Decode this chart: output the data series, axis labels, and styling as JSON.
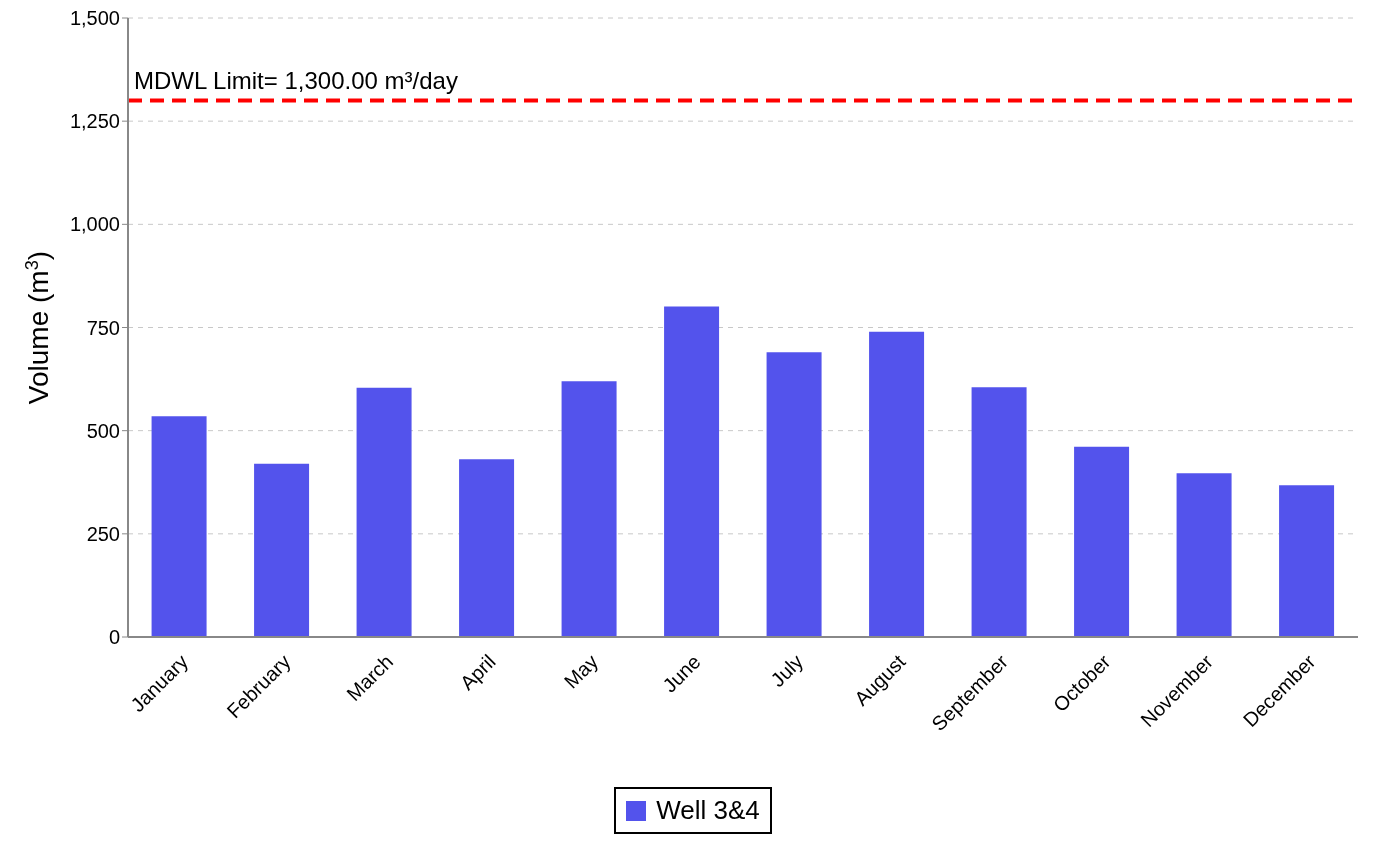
{
  "chart_data": {
    "type": "bar",
    "ylabel": "Volume (m$^{3}$)",
    "categories": [
      "January",
      "February",
      "March",
      "April",
      "May",
      "June",
      "July",
      "August",
      "September",
      "October",
      "November",
      "December"
    ],
    "series": [
      {
        "name": "Well 3&4",
        "color": "#5353ec",
        "values": [
          535,
          420,
          604,
          431,
          620,
          801,
          690,
          740,
          605,
          461,
          397,
          368
        ]
      }
    ],
    "ylim": [
      0,
      1500
    ],
    "yticks": [
      {
        "value": 0,
        "label": "0"
      },
      {
        "value": 250,
        "label": "250"
      },
      {
        "value": 500,
        "label": "500"
      },
      {
        "value": 750,
        "label": "750"
      },
      {
        "value": 1000,
        "label": "1,000"
      },
      {
        "value": 1250,
        "label": "1,250"
      },
      {
        "value": 1500,
        "label": "1,500"
      }
    ],
    "ref_lines": [
      {
        "axis": "y",
        "value": 1300,
        "label": "MDWL Limit= 1,300.00 m³/day",
        "color": "#ff0000",
        "line_style": "dashed"
      }
    ],
    "grid": "y",
    "legend": "bottom"
  }
}
